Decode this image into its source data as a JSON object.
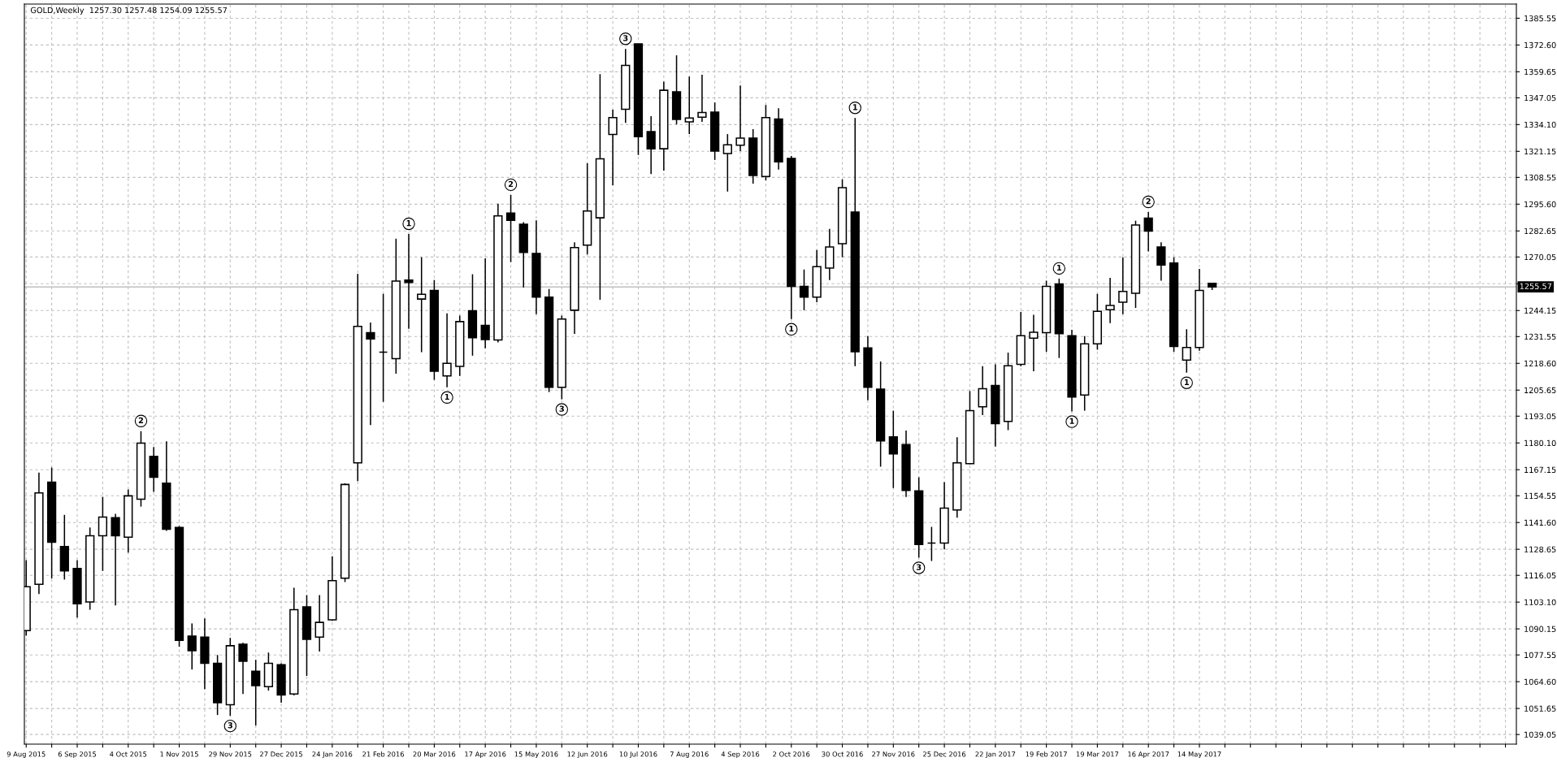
{
  "chart_data": {
    "type": "candlestick",
    "title": "GOLD,Weekly  1257.30 1257.48 1254.09 1255.57",
    "color": "#000000",
    "x": [
      "2015-08-09",
      "2015-08-16",
      "2015-08-23",
      "2015-08-30",
      "2015-09-06",
      "2015-09-13",
      "2015-09-20",
      "2015-09-27",
      "2015-10-04",
      "2015-10-11",
      "2015-10-18",
      "2015-10-25",
      "2015-11-01",
      "2015-11-08",
      "2015-11-15",
      "2015-11-22",
      "2015-11-29",
      "2015-12-06",
      "2015-12-13",
      "2015-12-20",
      "2015-12-27",
      "2016-01-03",
      "2016-01-10",
      "2016-01-17",
      "2016-01-24",
      "2016-01-31",
      "2016-02-07",
      "2016-02-14",
      "2016-02-21",
      "2016-02-28",
      "2016-03-06",
      "2016-03-13",
      "2016-03-20",
      "2016-03-27",
      "2016-04-03",
      "2016-04-10",
      "2016-04-17",
      "2016-04-24",
      "2016-05-01",
      "2016-05-08",
      "2016-05-15",
      "2016-05-22",
      "2016-05-29",
      "2016-06-05",
      "2016-06-12",
      "2016-06-19",
      "2016-06-26",
      "2016-07-03",
      "2016-07-10",
      "2016-07-17",
      "2016-07-24",
      "2016-07-31",
      "2016-08-07",
      "2016-08-14",
      "2016-08-21",
      "2016-08-28",
      "2016-09-04",
      "2016-09-11",
      "2016-09-18",
      "2016-09-25",
      "2016-10-02",
      "2016-10-09",
      "2016-10-16",
      "2016-10-23",
      "2016-10-30",
      "2016-11-06",
      "2016-11-13",
      "2016-11-20",
      "2016-11-27",
      "2016-12-04",
      "2016-12-11",
      "2016-12-18",
      "2016-12-25",
      "2017-01-01",
      "2017-01-08",
      "2017-01-15",
      "2017-01-22",
      "2017-01-29",
      "2017-02-05",
      "2017-02-12",
      "2017-02-19",
      "2017-02-26",
      "2017-03-05",
      "2017-03-12",
      "2017-03-19",
      "2017-03-26",
      "2017-04-02",
      "2017-04-09",
      "2017-04-16",
      "2017-04-23",
      "2017-04-30",
      "2017-05-07",
      "2017-05-14",
      "2017-05-21"
    ],
    "ohlc": [
      [
        1089.3,
        1123.4,
        1086.9,
        1110.5
      ],
      [
        1111.7,
        1165.8,
        1107.0,
        1155.9
      ],
      [
        1161.1,
        1168.2,
        1114.5,
        1132.1
      ],
      [
        1130.0,
        1145.3,
        1114.0,
        1118.2
      ],
      [
        1119.4,
        1123.4,
        1095.6,
        1102.3
      ],
      [
        1103.2,
        1139.2,
        1099.4,
        1135.2
      ],
      [
        1135.2,
        1154.0,
        1118.2,
        1144.2
      ],
      [
        1143.9,
        1145.8,
        1101.5,
        1135.2
      ],
      [
        1134.5,
        1157.6,
        1127.0,
        1154.5
      ],
      [
        1152.9,
        1185.8,
        1149.3,
        1180.0
      ],
      [
        1173.6,
        1178.1,
        1156.4,
        1163.5
      ],
      [
        1160.6,
        1180.9,
        1137.6,
        1138.3
      ],
      [
        1139.2,
        1139.9,
        1081.5,
        1084.6
      ],
      [
        1086.7,
        1092.8,
        1070.5,
        1079.6
      ],
      [
        1086.2,
        1095.2,
        1061.0,
        1073.5
      ],
      [
        1073.5,
        1077.5,
        1048.5,
        1054.4
      ],
      [
        1053.5,
        1085.8,
        1048.1,
        1082.0
      ],
      [
        1082.7,
        1083.4,
        1058.7,
        1074.5
      ],
      [
        1069.7,
        1075.2,
        1043.4,
        1062.7
      ],
      [
        1062.2,
        1078.7,
        1060.3,
        1073.5
      ],
      [
        1072.8,
        1073.5,
        1054.4,
        1058.2
      ],
      [
        1058.7,
        1110.0,
        1058.0,
        1099.4
      ],
      [
        1100.8,
        1106.5,
        1067.4,
        1085.1
      ],
      [
        1086.2,
        1106.5,
        1079.2,
        1093.3
      ],
      [
        1094.5,
        1125.3,
        1094.0,
        1113.5
      ],
      [
        1114.7,
        1160.6,
        1112.8,
        1160.0
      ],
      [
        1170.5,
        1261.9,
        1161.6,
        1236.5
      ],
      [
        1233.4,
        1238.4,
        1188.7,
        1230.4
      ],
      [
        1224.0,
        1252.2,
        1200.0,
        1224.0
      ],
      [
        1220.9,
        1278.9,
        1213.6,
        1258.4
      ],
      [
        1258.9,
        1281.2,
        1235.3,
        1257.7
      ],
      [
        1249.7,
        1269.9,
        1224.0,
        1252.0
      ],
      [
        1253.9,
        1258.9,
        1210.6,
        1214.8
      ],
      [
        1212.5,
        1242.8,
        1207.0,
        1218.6
      ],
      [
        1217.1,
        1241.7,
        1212.5,
        1238.8
      ],
      [
        1244.0,
        1261.7,
        1222.3,
        1231.0
      ],
      [
        1237.0,
        1269.4,
        1225.9,
        1230.1
      ],
      [
        1229.9,
        1295.8,
        1228.7,
        1289.9
      ],
      [
        1291.3,
        1300.1,
        1267.6,
        1287.8
      ],
      [
        1285.9,
        1286.9,
        1255.3,
        1272.3
      ],
      [
        1271.8,
        1287.8,
        1242.4,
        1250.6
      ],
      [
        1250.6,
        1254.6,
        1204.7,
        1207.0
      ],
      [
        1207.0,
        1241.7,
        1201.2,
        1240.0
      ],
      [
        1244.3,
        1277.2,
        1232.9,
        1274.6
      ],
      [
        1275.8,
        1315.4,
        1271.3,
        1292.3
      ],
      [
        1289.0,
        1358.5,
        1249.4,
        1317.5
      ],
      [
        1329.3,
        1341.3,
        1304.8,
        1337.5
      ],
      [
        1341.5,
        1370.7,
        1334.9,
        1362.7
      ],
      [
        1373.1,
        1373.1,
        1319.4,
        1328.3
      ],
      [
        1330.7,
        1338.2,
        1310.2,
        1322.4
      ],
      [
        1322.4,
        1354.9,
        1311.8,
        1350.7
      ],
      [
        1350.0,
        1367.6,
        1334.2,
        1336.6
      ],
      [
        1335.4,
        1357.3,
        1329.5,
        1337.3
      ],
      [
        1337.7,
        1358.2,
        1335.4,
        1339.9
      ],
      [
        1340.1,
        1344.8,
        1317.0,
        1321.3
      ],
      [
        1320.1,
        1329.5,
        1301.7,
        1324.3
      ],
      [
        1324.1,
        1353.0,
        1321.3,
        1327.6
      ],
      [
        1327.6,
        1331.9,
        1305.5,
        1309.5
      ],
      [
        1309.0,
        1343.6,
        1307.1,
        1337.5
      ],
      [
        1336.8,
        1342.0,
        1312.3,
        1316.1
      ],
      [
        1317.7,
        1318.9,
        1240.0,
        1255.8
      ],
      [
        1255.8,
        1264.0,
        1244.3,
        1250.6
      ],
      [
        1250.6,
        1273.4,
        1248.2,
        1265.4
      ],
      [
        1264.7,
        1283.6,
        1258.9,
        1274.9
      ],
      [
        1276.5,
        1307.6,
        1269.9,
        1303.6
      ],
      [
        1291.8,
        1337.3,
        1217.2,
        1224.2
      ],
      [
        1226.1,
        1231.8,
        1200.7,
        1207.0
      ],
      [
        1206.1,
        1219.5,
        1168.6,
        1181.1
      ],
      [
        1183.0,
        1195.7,
        1158.3,
        1174.8
      ],
      [
        1179.3,
        1186.1,
        1154.0,
        1157.1
      ],
      [
        1156.9,
        1163.5,
        1124.6,
        1131.0
      ],
      [
        1131.7,
        1139.5,
        1123.0,
        1131.7
      ],
      [
        1131.7,
        1161.1,
        1128.6,
        1148.6
      ],
      [
        1147.7,
        1182.8,
        1143.9,
        1170.5
      ],
      [
        1170.1,
        1205.2,
        1169.8,
        1195.7
      ],
      [
        1197.6,
        1217.2,
        1193.6,
        1206.3
      ],
      [
        1207.9,
        1218.1,
        1178.3,
        1189.4
      ],
      [
        1190.5,
        1223.8,
        1186.3,
        1217.4
      ],
      [
        1218.1,
        1243.5,
        1217.2,
        1232.0
      ],
      [
        1230.8,
        1242.1,
        1214.8,
        1233.6
      ],
      [
        1233.4,
        1258.6,
        1224.2,
        1255.8
      ],
      [
        1257.0,
        1259.6,
        1221.2,
        1233.0
      ],
      [
        1232.0,
        1234.8,
        1195.3,
        1202.3
      ],
      [
        1203.3,
        1231.8,
        1195.7,
        1228.0
      ],
      [
        1228.0,
        1252.2,
        1225.2,
        1243.8
      ],
      [
        1244.5,
        1260.0,
        1238.1,
        1246.6
      ],
      [
        1248.2,
        1269.9,
        1242.4,
        1253.4
      ],
      [
        1252.5,
        1287.6,
        1245.4,
        1285.5
      ],
      [
        1288.8,
        1291.8,
        1272.7,
        1282.6
      ],
      [
        1274.9,
        1277.2,
        1258.6,
        1266.2
      ],
      [
        1267.1,
        1269.9,
        1224.2,
        1226.8
      ],
      [
        1220.2,
        1235.1,
        1214.1,
        1226.3
      ],
      [
        1226.3,
        1264.3,
        1224.7,
        1253.9
      ],
      [
        1257.3,
        1257.48,
        1254.09,
        1255.57
      ]
    ],
    "xlim": [
      "2015-08-08",
      "2017-11-04"
    ],
    "ylim": [
      1034.4,
      1392.4
    ],
    "xticks": [
      {
        "value": "2015-08-09",
        "label": "9 Aug 2015"
      },
      {
        "value": "2015-08-23",
        "label": null
      },
      {
        "value": "2015-09-06",
        "label": "6 Sep 2015"
      },
      {
        "value": "2015-09-20",
        "label": null
      },
      {
        "value": "2015-10-04",
        "label": "4 Oct 2015"
      },
      {
        "value": "2015-10-18",
        "label": null
      },
      {
        "value": "2015-11-01",
        "label": "1 Nov 2015"
      },
      {
        "value": "2015-11-15",
        "label": null
      },
      {
        "value": "2015-11-29",
        "label": "29 Nov 2015"
      },
      {
        "value": "2015-12-13",
        "label": null
      },
      {
        "value": "2015-12-27",
        "label": "27 Dec 2015"
      },
      {
        "value": "2016-01-10",
        "label": null
      },
      {
        "value": "2016-01-24",
        "label": "24 Jan 2016"
      },
      {
        "value": "2016-02-07",
        "label": null
      },
      {
        "value": "2016-02-21",
        "label": "21 Feb 2016"
      },
      {
        "value": "2016-03-06",
        "label": null
      },
      {
        "value": "2016-03-20",
        "label": "20 Mar 2016"
      },
      {
        "value": "2016-04-03",
        "label": null
      },
      {
        "value": "2016-04-17",
        "label": "17 Apr 2016"
      },
      {
        "value": "2016-05-01",
        "label": null
      },
      {
        "value": "2016-05-15",
        "label": "15 May 2016"
      },
      {
        "value": "2016-05-29",
        "label": null
      },
      {
        "value": "2016-06-12",
        "label": "12 Jun 2016"
      },
      {
        "value": "2016-06-26",
        "label": null
      },
      {
        "value": "2016-07-10",
        "label": "10 Jul 2016"
      },
      {
        "value": "2016-07-24",
        "label": null
      },
      {
        "value": "2016-08-07",
        "label": "7 Aug 2016"
      },
      {
        "value": "2016-08-21",
        "label": null
      },
      {
        "value": "2016-09-04",
        "label": "4 Sep 2016"
      },
      {
        "value": "2016-09-18",
        "label": null
      },
      {
        "value": "2016-10-02",
        "label": "2 Oct 2016"
      },
      {
        "value": "2016-10-16",
        "label": null
      },
      {
        "value": "2016-10-30",
        "label": "30 Oct 2016"
      },
      {
        "value": "2016-11-13",
        "label": null
      },
      {
        "value": "2016-11-27",
        "label": "27 Nov 2016"
      },
      {
        "value": "2016-12-11",
        "label": null
      },
      {
        "value": "2016-12-25",
        "label": "25 Dec 2016"
      },
      {
        "value": "2017-01-08",
        "label": null
      },
      {
        "value": "2017-01-22",
        "label": "22 Jan 2017"
      },
      {
        "value": "2017-02-05",
        "label": null
      },
      {
        "value": "2017-02-19",
        "label": "19 Feb 2017"
      },
      {
        "value": "2017-03-05",
        "label": null
      },
      {
        "value": "2017-03-19",
        "label": "19 Mar 2017"
      },
      {
        "value": "2017-04-02",
        "label": null
      },
      {
        "value": "2017-04-16",
        "label": "16 Apr 2017"
      },
      {
        "value": "2017-04-30",
        "label": null
      },
      {
        "value": "2017-05-14",
        "label": "14 May 2017"
      },
      {
        "value": "2017-05-28",
        "label": null
      },
      {
        "value": "2017-06-11",
        "label": null
      },
      {
        "value": "2017-06-25",
        "label": null
      },
      {
        "value": "2017-07-09",
        "label": null
      },
      {
        "value": "2017-07-23",
        "label": null
      },
      {
        "value": "2017-08-06",
        "label": null
      },
      {
        "value": "2017-08-20",
        "label": null
      },
      {
        "value": "2017-09-03",
        "label": null
      },
      {
        "value": "2017-09-17",
        "label": null
      },
      {
        "value": "2017-10-01",
        "label": null
      },
      {
        "value": "2017-10-15",
        "label": null
      },
      {
        "value": "2017-10-29",
        "label": null
      }
    ],
    "yticks": [
      {
        "value": 1385.55,
        "label": "1385.55"
      },
      {
        "value": 1372.6,
        "label": "1372.60"
      },
      {
        "value": 1359.65,
        "label": "1359.65"
      },
      {
        "value": 1347.05,
        "label": "1347.05"
      },
      {
        "value": 1334.1,
        "label": "1334.10"
      },
      {
        "value": 1321.15,
        "label": "1321.15"
      },
      {
        "value": 1308.55,
        "label": "1308.55"
      },
      {
        "value": 1295.6,
        "label": "1295.60"
      },
      {
        "value": 1282.65,
        "label": "1282.65"
      },
      {
        "value": 1270.05,
        "label": "1270.05"
      },
      {
        "value": 1257.1,
        "label": null
      },
      {
        "value": 1244.15,
        "label": "1244.15"
      },
      {
        "value": 1231.55,
        "label": "1231.55"
      },
      {
        "value": 1218.6,
        "label": "1218.60"
      },
      {
        "value": 1205.65,
        "label": "1205.65"
      },
      {
        "value": 1193.05,
        "label": "1193.05"
      },
      {
        "value": 1180.1,
        "label": "1180.10"
      },
      {
        "value": 1167.15,
        "label": "1167.15"
      },
      {
        "value": 1154.55,
        "label": "1154.55"
      },
      {
        "value": 1141.6,
        "label": "1141.60"
      },
      {
        "value": 1128.65,
        "label": "1128.65"
      },
      {
        "value": 1116.05,
        "label": "1116.05"
      },
      {
        "value": 1103.1,
        "label": "1103.10"
      },
      {
        "value": 1090.15,
        "label": "1090.15"
      },
      {
        "value": 1077.55,
        "label": "1077.55"
      },
      {
        "value": 1064.6,
        "label": "1064.60"
      },
      {
        "value": 1051.65,
        "label": "1051.65"
      },
      {
        "value": 1039.05,
        "label": "1039.05"
      }
    ],
    "grid": true,
    "ref_lines": [
      {
        "axis": "y",
        "value": 1255.57,
        "label": "1255.57",
        "color": "#c0c0c0"
      }
    ],
    "annotations": [
      {
        "text": "2",
        "x": "2015-10-11",
        "y": 1185.8
      },
      {
        "text": "3",
        "x": "2015-11-29",
        "y": 1048.1
      },
      {
        "text": "1",
        "x": "2016-03-06",
        "y": 1281.2
      },
      {
        "text": "1",
        "x": "2016-03-27",
        "y": 1207.0
      },
      {
        "text": "2",
        "x": "2016-05-01",
        "y": 1300.1
      },
      {
        "text": "3",
        "x": "2016-05-29",
        "y": 1201.2
      },
      {
        "text": "3",
        "x": "2016-07-03",
        "y": 1370.7
      },
      {
        "text": "1",
        "x": "2016-10-02",
        "y": 1240.0
      },
      {
        "text": "1",
        "x": "2016-11-06",
        "y": 1337.3
      },
      {
        "text": "3",
        "x": "2016-12-11",
        "y": 1124.6
      },
      {
        "text": "1",
        "x": "2017-02-26",
        "y": 1259.6
      },
      {
        "text": "1",
        "x": "2017-03-05",
        "y": 1195.3
      },
      {
        "text": "2",
        "x": "2017-04-16",
        "y": 1291.8
      },
      {
        "text": "1",
        "x": "2017-05-07",
        "y": 1214.1
      }
    ]
  }
}
